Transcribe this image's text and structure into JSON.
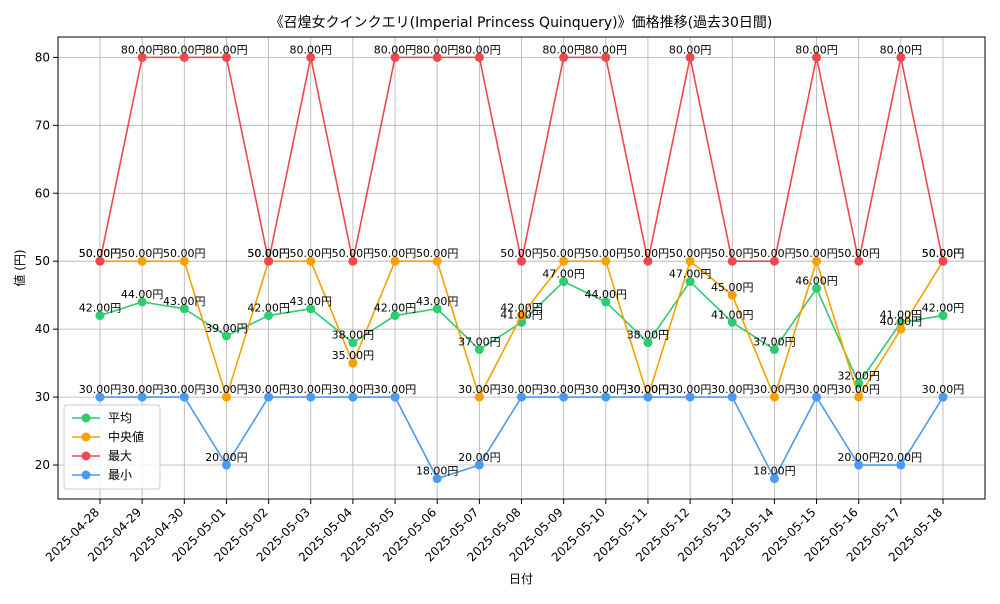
{
  "chart_data": {
    "type": "line",
    "title": "《召煌女クインクエリ(Imperial Princess Quinquery)》価格推移(過去30日間)",
    "xlabel": "日付",
    "ylabel": "値 (円)",
    "ylim": [
      15,
      83
    ],
    "yticks": [
      20,
      30,
      40,
      50,
      60,
      70,
      80
    ],
    "grid": true,
    "legend_position": "lower-left",
    "value_suffix": "円",
    "categories": [
      "2025-04-28",
      "2025-04-29",
      "2025-04-30",
      "2025-05-01",
      "2025-05-02",
      "2025-05-03",
      "2025-05-04",
      "2025-05-05",
      "2025-05-06",
      "2025-05-07",
      "2025-05-08",
      "2025-05-09",
      "2025-05-10",
      "2025-05-11",
      "2025-05-12",
      "2025-05-13",
      "2025-05-14",
      "2025-05-15",
      "2025-05-16",
      "2025-05-17",
      "2025-05-18"
    ],
    "series": [
      {
        "name": "平均",
        "color": "#2ecc71",
        "values": [
          42,
          44,
          43,
          39,
          42,
          43,
          38,
          42,
          43,
          37,
          41,
          47,
          44,
          38,
          47,
          41,
          37,
          46,
          32,
          41,
          42
        ]
      },
      {
        "name": "中央値",
        "color": "#f5a200",
        "values": [
          50,
          50,
          50,
          30,
          50,
          50,
          35,
          50,
          50,
          30,
          42,
          50,
          50,
          30,
          50,
          45,
          30,
          50,
          30,
          40,
          50
        ]
      },
      {
        "name": "最大",
        "color": "#f0474f",
        "values": [
          50,
          80,
          80,
          80,
          50,
          80,
          50,
          80,
          80,
          80,
          50,
          80,
          80,
          50,
          80,
          50,
          50,
          80,
          50,
          80,
          50
        ]
      },
      {
        "name": "最小",
        "color": "#4a9af5",
        "values": [
          30,
          30,
          30,
          20,
          30,
          30,
          30,
          30,
          18,
          20,
          30,
          30,
          30,
          30,
          30,
          30,
          18,
          30,
          20,
          20,
          30
        ]
      }
    ]
  }
}
